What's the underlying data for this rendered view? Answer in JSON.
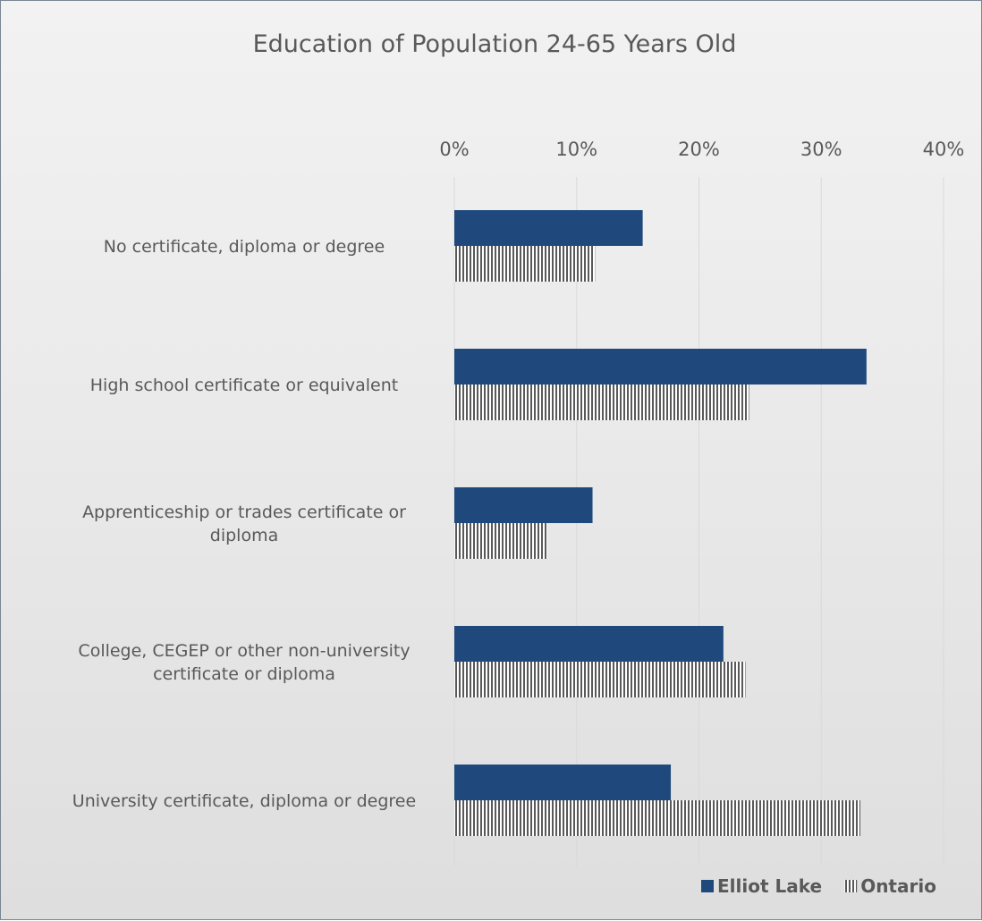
{
  "chart_data": {
    "type": "bar",
    "orientation": "horizontal",
    "title": "Education of Population 24-65 Years Old",
    "categories": [
      [
        "No certificate, diploma or degree"
      ],
      [
        "High school certificate or equivalent"
      ],
      [
        "Apprenticeship or trades certificate or",
        "diploma"
      ],
      [
        "College, CEGEP or other non-university",
        "certificate or diploma"
      ],
      [
        "University certificate, diploma or degree"
      ]
    ],
    "series": [
      {
        "name": "Elliot Lake",
        "values": [
          15.4,
          33.7,
          11.3,
          22.0,
          17.7
        ],
        "color": "#1f497d",
        "pattern": "solid"
      },
      {
        "name": "Ontario",
        "values": [
          11.5,
          24.1,
          7.6,
          23.8,
          33.2
        ],
        "color": "#595959",
        "pattern": "vertical-stripes"
      }
    ],
    "xaxis": {
      "position": "top",
      "min": 0,
      "max": 40,
      "ticks": [
        0,
        10,
        20,
        30,
        40
      ],
      "tick_labels": [
        "0%",
        "10%",
        "20%",
        "30%",
        "40%"
      ]
    },
    "grid": true,
    "legend": {
      "position": "bottom-right"
    }
  }
}
